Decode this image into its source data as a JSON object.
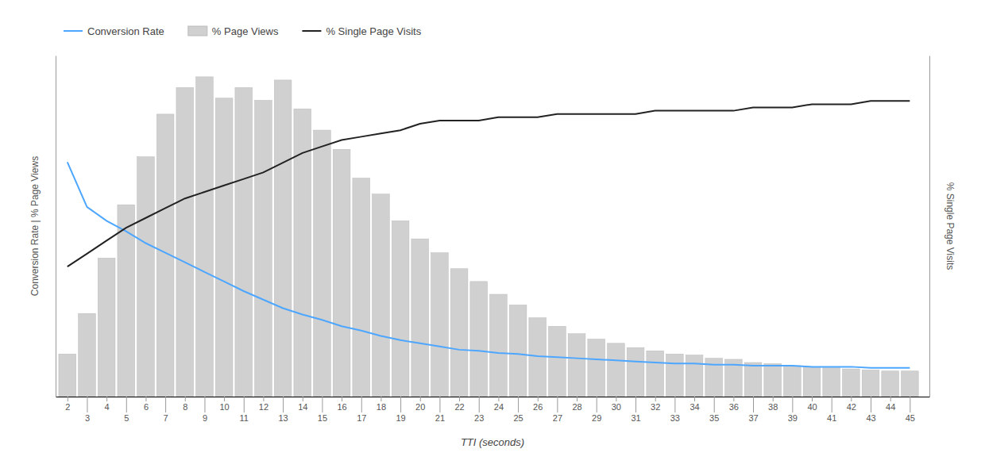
{
  "chart_data": {
    "type": "bar",
    "xlabel": "TTI (seconds)",
    "ylabel": "Conversion Rate | % Page Views",
    "y2label": "% Single Page Visits",
    "x": [
      2,
      3,
      4,
      5,
      6,
      7,
      8,
      9,
      10,
      11,
      12,
      13,
      14,
      15,
      16,
      17,
      18,
      19,
      20,
      21,
      22,
      23,
      24,
      25,
      26,
      27,
      28,
      29,
      30,
      31,
      32,
      33,
      34,
      35,
      36,
      37,
      38,
      39,
      40,
      41,
      42,
      43,
      44,
      45
    ],
    "xlim": [
      1.4,
      46.0
    ],
    "xticks": [
      2,
      3,
      4,
      5,
      6,
      7,
      8,
      9,
      10,
      11,
      12,
      13,
      14,
      15,
      16,
      17,
      18,
      19,
      20,
      21,
      22,
      23,
      24,
      25,
      26,
      27,
      28,
      29,
      30,
      31,
      32,
      33,
      34,
      35,
      36,
      37,
      38,
      39,
      40,
      41,
      42,
      43,
      44,
      45
    ],
    "ylim": [
      0,
      0.32
    ],
    "y2lim": [
      0.0,
      1.05
    ],
    "tick_labels": "x",
    "grid": false,
    "legend": "upper left",
    "series": [
      {
        "name": "Conversion Rate",
        "type": "line",
        "color": "#4da6ff",
        "values": [
          0.22,
          0.178,
          0.165,
          0.155,
          0.144,
          0.135,
          0.126,
          0.117,
          0.108,
          0.099,
          0.091,
          0.083,
          0.077,
          0.072,
          0.066,
          0.062,
          0.057,
          0.053,
          0.05,
          0.047,
          0.044,
          0.043,
          0.041,
          0.04,
          0.038,
          0.037,
          0.036,
          0.035,
          0.034,
          0.033,
          0.032,
          0.031,
          0.031,
          0.03,
          0.03,
          0.029,
          0.029,
          0.029,
          0.028,
          0.028,
          0.028,
          0.027,
          0.027,
          0.027
        ]
      },
      {
        "name": "% Page Views",
        "type": "bar",
        "color": "#d0d0d0",
        "values": [
          0.04,
          0.078,
          0.13,
          0.18,
          0.225,
          0.265,
          0.29,
          0.3,
          0.28,
          0.29,
          0.278,
          0.297,
          0.27,
          0.25,
          0.232,
          0.205,
          0.19,
          0.165,
          0.148,
          0.135,
          0.12,
          0.108,
          0.096,
          0.086,
          0.074,
          0.066,
          0.059,
          0.054,
          0.05,
          0.046,
          0.043,
          0.04,
          0.039,
          0.036,
          0.035,
          0.032,
          0.031,
          0.029,
          0.028,
          0.027,
          0.026,
          0.025,
          0.024,
          0.024
        ]
      },
      {
        "name": "% Single Page Visits",
        "type": "line",
        "color": "#222222",
        "axis": "y2",
        "values": [
          0.4,
          0.44,
          0.48,
          0.52,
          0.55,
          0.58,
          0.61,
          0.63,
          0.65,
          0.67,
          0.69,
          0.72,
          0.75,
          0.77,
          0.79,
          0.8,
          0.81,
          0.82,
          0.84,
          0.85,
          0.85,
          0.85,
          0.86,
          0.86,
          0.86,
          0.87,
          0.87,
          0.87,
          0.87,
          0.87,
          0.88,
          0.88,
          0.88,
          0.88,
          0.88,
          0.89,
          0.89,
          0.89,
          0.9,
          0.9,
          0.9,
          0.91,
          0.91,
          0.91
        ]
      }
    ]
  }
}
